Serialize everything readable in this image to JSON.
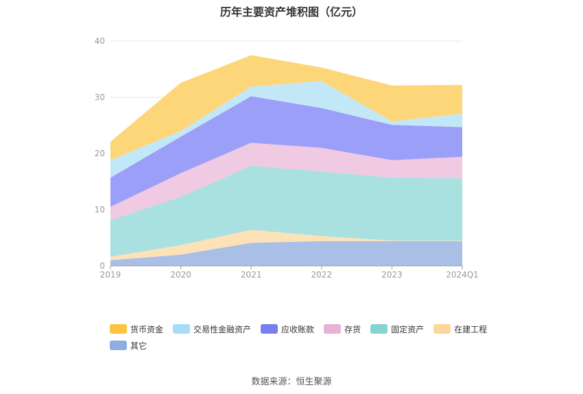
{
  "chart_data": {
    "type": "area",
    "title": "历年主要资产堆积图（亿元）",
    "categories": [
      "2019",
      "2020",
      "2021",
      "2022",
      "2023",
      "2024Q1"
    ],
    "ylim": [
      0,
      40
    ],
    "yticks": [
      "0",
      "10",
      "20",
      "30",
      "40"
    ],
    "stacked": true,
    "grid": true,
    "legend_position": "bottom",
    "series": [
      {
        "name": "其它",
        "color": "#a9bfe6",
        "values": [
          1.0,
          2.0,
          4.1,
          4.4,
          4.4,
          4.4
        ]
      },
      {
        "name": "在建工程",
        "color": "#fde2b8",
        "values": [
          0.6,
          1.7,
          2.3,
          0.9,
          0.1,
          0.1
        ]
      },
      {
        "name": "固定资产",
        "color": "#a8e1e0",
        "values": [
          6.5,
          8.6,
          11.4,
          11.5,
          11.2,
          11.1
        ]
      },
      {
        "name": "存货",
        "color": "#f0c9e2",
        "values": [
          2.4,
          4.2,
          4.1,
          4.2,
          3.1,
          3.8
        ]
      },
      {
        "name": "应收账款",
        "color": "#9c9ff7",
        "values": [
          5.2,
          6.5,
          8.3,
          7.1,
          6.3,
          5.3
        ]
      },
      {
        "name": "交易性金融资产",
        "color": "#c2e8f8",
        "values": [
          3.1,
          1.0,
          1.7,
          4.8,
          0.6,
          2.4
        ]
      },
      {
        "name": "货币资金",
        "color": "#fdd67a",
        "values": [
          3.3,
          8.6,
          5.6,
          2.4,
          6.4,
          5.1
        ]
      }
    ]
  },
  "legend": [
    {
      "label": "货币资金",
      "color": "#fbc53f"
    },
    {
      "label": "交易性金融资产",
      "color": "#a6dcf7"
    },
    {
      "label": "应收账款",
      "color": "#7a7ef0"
    },
    {
      "label": "存货",
      "color": "#e6b3d6"
    },
    {
      "label": "固定资产",
      "color": "#86d4d2"
    },
    {
      "label": "在建工程",
      "color": "#fdd799"
    },
    {
      "label": "其它",
      "color": "#8fadde"
    }
  ],
  "source": "数据来源：恒生聚源"
}
